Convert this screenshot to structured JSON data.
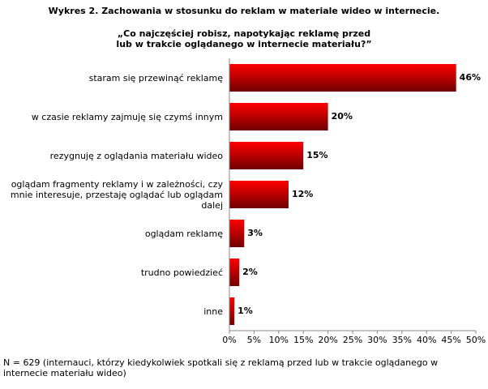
{
  "chart_data": {
    "type": "bar",
    "orientation": "horizontal",
    "title": "Wykres 2. Zachowania w stosunku do reklam w materiale wideo w internecie.",
    "subtitle": [
      "„Co najczęściej robisz, napotykając reklamę przed",
      "lub w trakcie oglądanego w internecie materiału?”"
    ],
    "categories": [
      "staram się przewinąć reklamę",
      "w czasie reklamy zajmuję się czymś innym",
      "rezygnuję z oglądania materiału wideo",
      "oglądam fragmenty reklamy i w zależności, czy mnie interesuje, przestaję oglądać lub oglądam dalej",
      "oglądam reklamę",
      "trudno powiedzieć",
      "inne"
    ],
    "values": [
      46,
      20,
      15,
      12,
      3,
      2,
      1
    ],
    "value_labels": [
      "46%",
      "20%",
      "15%",
      "12%",
      "3%",
      "2%",
      "1%"
    ],
    "color": "#ff0000",
    "xlim": [
      0,
      50
    ],
    "xticks": [
      {
        "value": 0,
        "label": "0%"
      },
      {
        "value": 5,
        "label": "5%"
      },
      {
        "value": 10,
        "label": "10%"
      },
      {
        "value": 15,
        "label": "15%"
      },
      {
        "value": 20,
        "label": "20%"
      },
      {
        "value": 25,
        "label": "25%"
      },
      {
        "value": 30,
        "label": "30%"
      },
      {
        "value": 35,
        "label": "35%"
      },
      {
        "value": 40,
        "label": "40%"
      },
      {
        "value": 45,
        "label": "45%"
      },
      {
        "value": 50,
        "label": "50%"
      }
    ],
    "grid": false,
    "note": "N = 629 (internauci, którzy kiedykolwiek spotkali się z reklamą przed lub w trakcie oglądanego w internecie materiału wideo)"
  }
}
